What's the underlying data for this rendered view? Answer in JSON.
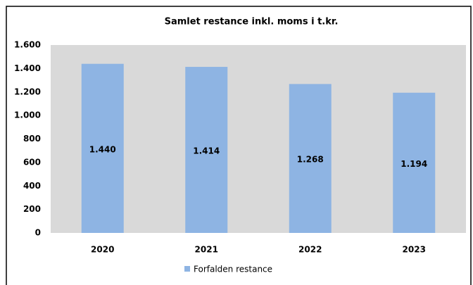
{
  "chart_data": {
    "type": "bar",
    "title": "Samlet restance inkl. moms i t.kr.",
    "categories": [
      "2020",
      "2021",
      "2022",
      "2023"
    ],
    "series": [
      {
        "name": "Forfalden restance",
        "color": "#8eb4e3",
        "values": [
          1440,
          1414,
          1268,
          1194
        ],
        "value_labels": [
          "1.440",
          "1.414",
          "1.268",
          "1.194"
        ]
      }
    ],
    "ylim": [
      0,
      1600
    ],
    "yticks": [
      0,
      200,
      400,
      600,
      800,
      {
        "value": 1000,
        "label": "1.000"
      },
      {
        "value": 1200,
        "label": "1.200"
      },
      {
        "value": 1400,
        "label": "1.400"
      },
      {
        "value": 1600,
        "label": "1.600"
      }
    ],
    "plot_background": "#d9d9d9",
    "legend": "bottom"
  }
}
